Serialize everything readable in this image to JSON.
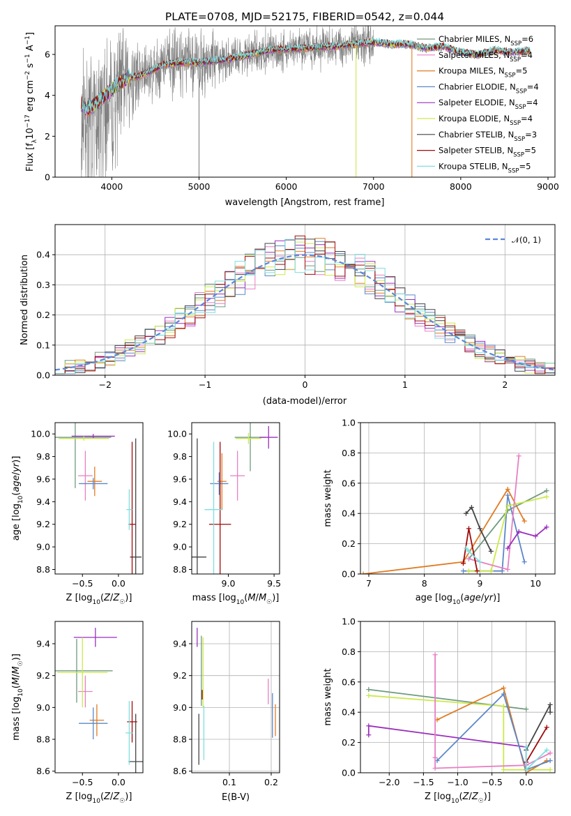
{
  "figure": {
    "title": "PLATE=0708, MJD=52175, FIBERID=0542, z=0.044"
  },
  "colors": {
    "chabrier_miles": "#6f9a7e",
    "salpeter_miles": "#e77fc2",
    "kroupa_miles": "#e07b22",
    "chabrier_elodie": "#5b87c8",
    "salpeter_elodie": "#9a2fbd",
    "kroupa_elodie": "#cbe94a",
    "chabrier_stelib": "#444444",
    "salpeter_stelib": "#a00a0a",
    "kroupa_stelib": "#7fdede",
    "observed": "#808080",
    "normal_curve": "#5b87d8",
    "grid": "#b0b0b0"
  },
  "chart_data": [
    {
      "id": "spectrum",
      "type": "line",
      "title": "PLATE=0708, MJD=52175, FIBERID=0542, z=0.044",
      "xlabel": "wavelength [Angstrom, rest frame]",
      "ylabel": "Flux [f_λ 10^-17 erg cm^-2 s^-1 A^-1]",
      "ylabel_parts": {
        "a": "Flux [f",
        "b": "λ",
        "c": "10",
        "d": "−17",
        "e": " erg cm",
        "f": "−2",
        "g": " s",
        "h": "−1",
        "i": " A",
        "j": "−1",
        "k": "]"
      },
      "xlim": [
        3350,
        9080
      ],
      "ylim": [
        0,
        7.4
      ],
      "xticks": [
        "4000",
        "5000",
        "6000",
        "7000",
        "8000",
        "9000"
      ],
      "xtick_values": [
        4000,
        5000,
        6000,
        7000,
        8000,
        9000
      ],
      "yticks": [
        "0",
        "2",
        "4",
        "6"
      ],
      "ytick_values": [
        0,
        2,
        4,
        6
      ],
      "grid": false,
      "legend_position": "upper right",
      "continuum": {
        "x": [
          3650,
          3700,
          3800,
          3900,
          4000,
          4100,
          4200,
          4300,
          4400,
          4500,
          4600,
          4800,
          5000,
          5200,
          5400,
          5600,
          5800,
          6000,
          6200,
          6400,
          6600,
          6800,
          7000,
          7200,
          7400,
          7600,
          7800,
          8000,
          8200,
          8400,
          8600,
          8800
        ],
        "y": [
          3.6,
          3.3,
          3.5,
          3.9,
          4.3,
          4.6,
          4.9,
          4.9,
          5.1,
          5.3,
          5.5,
          5.6,
          5.6,
          5.7,
          5.8,
          6.0,
          6.2,
          6.25,
          6.3,
          6.35,
          6.4,
          6.5,
          6.6,
          6.5,
          6.5,
          6.3,
          6.4,
          6.1,
          6.0,
          6.2,
          6.1,
          6.2
        ]
      },
      "observed_range": [
        3650,
        7000
      ],
      "sharp_dips": [
        {
          "x": 5000,
          "y": 0,
          "series": "observed"
        },
        {
          "x": 6800,
          "y": 0,
          "series": "kroupa_elodie"
        },
        {
          "x": 7440,
          "y": 0,
          "series": "kroupa_miles"
        }
      ],
      "series": [
        {
          "key": "chabrier_miles",
          "label": "Chabrier MILES, N",
          "sub": "SSP",
          "value": "=6"
        },
        {
          "key": "salpeter_miles",
          "label": "Salpeter MILES, N",
          "sub": "SSP",
          "value": "=4"
        },
        {
          "key": "kroupa_miles",
          "label": "Kroupa MILES, N",
          "sub": "SSP",
          "value": "=5"
        },
        {
          "key": "chabrier_elodie",
          "label": "Chabrier ELODIE, N",
          "sub": "SSP",
          "value": "=4"
        },
        {
          "key": "salpeter_elodie",
          "label": "Salpeter ELODIE, N",
          "sub": "SSP",
          "value": "=4"
        },
        {
          "key": "kroupa_elodie",
          "label": "Kroupa ELODIE, N",
          "sub": "SSP",
          "value": "=4"
        },
        {
          "key": "chabrier_stelib",
          "label": "Chabrier STELIB, N",
          "sub": "SSP",
          "value": "=3"
        },
        {
          "key": "salpeter_stelib",
          "label": "Salpeter STELIB, N",
          "sub": "SSP",
          "value": "=5"
        },
        {
          "key": "kroupa_stelib",
          "label": "Kroupa STELIB, N",
          "sub": "SSP",
          "value": "=5"
        }
      ]
    },
    {
      "id": "residuals",
      "type": "line",
      "xlabel": "(data-model)/error",
      "ylabel": "Normed distribution",
      "xlim": [
        -2.5,
        2.5
      ],
      "ylim": [
        0,
        0.5
      ],
      "xticks": [
        "−2",
        "−1",
        "0",
        "1",
        "2"
      ],
      "xtick_values": [
        -2,
        -1,
        0,
        1,
        2
      ],
      "yticks": [
        "0.0",
        "0.1",
        "0.2",
        "0.3",
        "0.4"
      ],
      "ytick_values": [
        0,
        0.1,
        0.2,
        0.3,
        0.4
      ],
      "grid": true,
      "legend_position": "upper right",
      "legend_label": "𝒩(0, 1)",
      "bin_width": 0.1,
      "bin_start": -2.5,
      "normal": {
        "mean": 0,
        "sd": 1
      }
    },
    {
      "id": "age_vs_z",
      "type": "scatter",
      "xlabel": "Z [log10(Z/Z_sun)]",
      "ylabel": "age [log10(age/yr)]",
      "xlim": [
        -0.88,
        0.34
      ],
      "ylim": [
        8.76,
        10.1
      ],
      "xticks": [
        "−0.5",
        "0.0"
      ],
      "xtick_values": [
        -0.5,
        0.0
      ],
      "yticks": [
        "8.8",
        "9.0",
        "9.2",
        "9.4",
        "9.6",
        "9.8",
        "10.0"
      ],
      "ytick_values": [
        8.8,
        9.0,
        9.2,
        9.4,
        9.6,
        9.8,
        10.0
      ],
      "grid": false,
      "points": [
        {
          "series": "chabrier_miles",
          "x": -0.6,
          "xerr": 0.5,
          "y": 9.97,
          "yerr": 0.45
        },
        {
          "series": "salpeter_miles",
          "x": -0.46,
          "xerr": 0.1,
          "y": 9.63,
          "yerr": 0.22
        },
        {
          "series": "kroupa_miles",
          "x": -0.33,
          "xerr": 0.1,
          "y": 9.58,
          "yerr": 0.13
        },
        {
          "series": "chabrier_elodie",
          "x": -0.35,
          "xerr": 0.2,
          "y": 9.56,
          "yerr": 0.05
        },
        {
          "series": "salpeter_elodie",
          "x": -0.35,
          "xerr": 0.3,
          "y": 9.98,
          "yerr": 0.02
        },
        {
          "series": "kroupa_elodie",
          "x": -0.48,
          "xerr": 0.35,
          "y": 9.96,
          "yerr": 0.02
        },
        {
          "series": "chabrier_stelib",
          "x": 0.24,
          "xerr": 0.08,
          "y": 8.91,
          "yerr": 1.05
        },
        {
          "series": "salpeter_stelib",
          "x": 0.19,
          "xerr": 0.05,
          "y": 9.2,
          "yerr": 0.73
        },
        {
          "series": "kroupa_stelib",
          "x": 0.15,
          "xerr": 0.04,
          "y": 9.33,
          "yerr": 0.18
        }
      ]
    },
    {
      "id": "age_vs_mass",
      "type": "scatter",
      "xlabel": "mass [log10(M/M_sun)]",
      "xlim": [
        8.6,
        9.56
      ],
      "ylim": [
        8.76,
        10.1
      ],
      "xticks": [
        "9.0",
        "9.5"
      ],
      "xtick_values": [
        9.0,
        9.5
      ],
      "yticks": [
        "8.8",
        "9.0",
        "9.2",
        "9.4",
        "9.6",
        "9.8",
        "10.0"
      ],
      "ytick_values": [
        8.8,
        9.0,
        9.2,
        9.4,
        9.6,
        9.8,
        10.0
      ],
      "grid": false,
      "points": [
        {
          "series": "chabrier_miles",
          "x": 9.24,
          "xerr": 0.17,
          "y": 9.97,
          "yerr": 0.3
        },
        {
          "series": "salpeter_miles",
          "x": 9.1,
          "xerr": 0.08,
          "y": 9.63,
          "yerr": 0.22
        },
        {
          "series": "kroupa_miles",
          "x": 8.93,
          "xerr": 0.05,
          "y": 9.58,
          "yerr": 0.25
        },
        {
          "series": "chabrier_elodie",
          "x": 8.9,
          "xerr": 0.1,
          "y": 9.56,
          "yerr": 0.1
        },
        {
          "series": "salpeter_elodie",
          "x": 9.44,
          "xerr": 0.1,
          "y": 9.97,
          "yerr": 0.1
        },
        {
          "series": "kroupa_elodie",
          "x": 9.22,
          "xerr": 0.14,
          "y": 9.96,
          "yerr": 0.05
        },
        {
          "series": "chabrier_stelib",
          "x": 8.66,
          "xerr": 0.1,
          "y": 8.91,
          "yerr": 1.05
        },
        {
          "series": "salpeter_stelib",
          "x": 8.91,
          "xerr": 0.12,
          "y": 9.2,
          "yerr": 0.73
        },
        {
          "series": "kroupa_stelib",
          "x": 8.84,
          "xerr": 0.1,
          "y": 9.33,
          "yerr": 0.6
        }
      ]
    },
    {
      "id": "mass_weight_vs_age",
      "type": "line",
      "xlabel": "age [log10(age/yr)]",
      "ylabel": "mass weight",
      "xlim": [
        6.85,
        10.35
      ],
      "ylim": [
        0,
        1.0
      ],
      "xticks": [
        "7",
        "8",
        "9",
        "10"
      ],
      "xtick_values": [
        7,
        8,
        9,
        10
      ],
      "yticks": [
        "0.0",
        "0.2",
        "0.4",
        "0.6",
        "0.8",
        "1.0"
      ],
      "ytick_values": [
        0,
        0.2,
        0.4,
        0.6,
        0.8,
        1.0
      ],
      "grid": true,
      "series": [
        {
          "key": "kroupa_miles",
          "x": [
            6.9,
            8.7,
            9.5,
            9.8
          ],
          "y": [
            0.0,
            0.08,
            0.56,
            0.35
          ]
        },
        {
          "key": "chabrier_elodie",
          "x": [
            8.7,
            9.4,
            9.5,
            9.8
          ],
          "y": [
            0.02,
            0.02,
            0.52,
            0.08
          ]
        },
        {
          "key": "chabrier_miles",
          "x": [
            8.8,
            9.5,
            10.2
          ],
          "y": [
            0.1,
            0.42,
            0.55
          ]
        },
        {
          "key": "kroupa_elodie",
          "x": [
            8.8,
            9.2,
            9.5,
            10.2
          ],
          "y": [
            0.02,
            0.02,
            0.45,
            0.51
          ]
        },
        {
          "key": "salpeter_miles",
          "x": [
            8.8,
            9.5,
            9.7
          ],
          "y": [
            0.1,
            0.03,
            0.78
          ]
        },
        {
          "key": "salpeter_elodie",
          "x": [
            9.5,
            9.7,
            10.0,
            10.2
          ],
          "y": [
            0.17,
            0.28,
            0.25,
            0.31
          ]
        },
        {
          "key": "chabrier_stelib",
          "x": [
            8.75,
            8.85,
            9.0,
            9.2
          ],
          "y": [
            0.4,
            0.44,
            0.3,
            0.15
          ]
        },
        {
          "key": "salpeter_stelib",
          "x": [
            8.7,
            8.8,
            8.95
          ],
          "y": [
            0.07,
            0.3,
            0.02
          ]
        },
        {
          "key": "kroupa_stelib",
          "x": [
            8.75,
            8.8,
            9.0
          ],
          "y": [
            0.17,
            0.15,
            0.08
          ]
        }
      ]
    },
    {
      "id": "mass_vs_z",
      "type": "scatter",
      "xlabel": "Z [log10(Z/Z_sun)]",
      "ylabel": "mass [log10(M/M_sun)]",
      "xlim": [
        -0.88,
        0.34
      ],
      "ylim": [
        8.59,
        9.54
      ],
      "xticks": [
        "−0.5",
        "0.0"
      ],
      "xtick_values": [
        -0.5,
        0.0
      ],
      "yticks": [
        "8.6",
        "8.8",
        "9.0",
        "9.2",
        "9.4"
      ],
      "ytick_values": [
        8.6,
        8.8,
        9.0,
        9.2,
        9.4
      ],
      "grid": false,
      "points": [
        {
          "series": "chabrier_miles",
          "x": -0.58,
          "xerr": 0.5,
          "y": 9.23,
          "yerr": 0.2
        },
        {
          "series": "salpeter_miles",
          "x": -0.46,
          "xerr": 0.1,
          "y": 9.1,
          "yerr": 0.1
        },
        {
          "series": "kroupa_miles",
          "x": -0.3,
          "xerr": 0.1,
          "y": 8.92,
          "yerr": 0.1
        },
        {
          "series": "chabrier_elodie",
          "x": -0.35,
          "xerr": 0.2,
          "y": 8.9,
          "yerr": 0.1
        },
        {
          "series": "salpeter_elodie",
          "x": -0.32,
          "xerr": 0.3,
          "y": 9.44,
          "yerr": 0.06
        },
        {
          "series": "kroupa_elodie",
          "x": -0.5,
          "xerr": 0.35,
          "y": 9.22,
          "yerr": 0.22
        },
        {
          "series": "chabrier_stelib",
          "x": 0.24,
          "xerr": 0.1,
          "y": 8.66,
          "yerr": 0.3
        },
        {
          "series": "salpeter_stelib",
          "x": 0.19,
          "xerr": 0.07,
          "y": 8.91,
          "yerr": 0.13
        },
        {
          "series": "kroupa_stelib",
          "x": 0.15,
          "xerr": 0.05,
          "y": 8.84,
          "yerr": 0.2
        }
      ]
    },
    {
      "id": "mass_vs_ebv",
      "type": "scatter",
      "xlabel": "E(B-V)",
      "xlim": [
        0.01,
        0.22
      ],
      "ylim": [
        8.59,
        9.54
      ],
      "xticks": [
        "0.1",
        "0.2"
      ],
      "xtick_values": [
        0.1,
        0.2
      ],
      "yticks": [
        "8.6",
        "8.8",
        "9.0",
        "9.2",
        "9.4"
      ],
      "ytick_values": [
        8.6,
        8.8,
        9.0,
        9.2,
        9.4
      ],
      "grid": true,
      "points": [
        {
          "series": "chabrier_miles",
          "x": 0.033,
          "xerr": 0,
          "y": 9.23,
          "yerr": 0.22
        },
        {
          "series": "salpeter_miles",
          "x": 0.193,
          "xerr": 0,
          "y": 9.1,
          "yerr": 0.08
        },
        {
          "series": "kroupa_miles",
          "x": 0.21,
          "xerr": 0,
          "y": 8.92,
          "yerr": 0.1
        },
        {
          "series": "chabrier_elodie",
          "x": 0.203,
          "xerr": 0,
          "y": 8.95,
          "yerr": 0.14
        },
        {
          "series": "salpeter_elodie",
          "x": 0.023,
          "xerr": 0,
          "y": 9.44,
          "yerr": 0.06
        },
        {
          "series": "kroupa_elodie",
          "x": 0.037,
          "xerr": 0,
          "y": 9.22,
          "yerr": 0.22
        },
        {
          "series": "chabrier_stelib",
          "x": 0.027,
          "xerr": 0,
          "y": 8.8,
          "yerr": 0.16
        },
        {
          "series": "salpeter_stelib",
          "x": 0.035,
          "xerr": 0,
          "y": 9.08,
          "yerr": 0.03
        },
        {
          "series": "kroupa_stelib",
          "x": 0.039,
          "xerr": 0,
          "y": 8.84,
          "yerr": 0.17
        }
      ]
    },
    {
      "id": "mass_weight_vs_z",
      "type": "line",
      "xlabel": "Z [log10(Z/Z_sun)]",
      "ylabel": "mass weight",
      "xlim": [
        -2.42,
        0.42
      ],
      "ylim": [
        0,
        1.0
      ],
      "xticks": [
        "−2.0",
        "−1.5",
        "−1.0",
        "−0.5",
        "0.0"
      ],
      "xtick_values": [
        -2.0,
        -1.5,
        -1.0,
        -0.5,
        0.0
      ],
      "yticks": [
        "0.0",
        "0.2",
        "0.4",
        "0.6",
        "0.8",
        "1.0"
      ],
      "ytick_values": [
        0,
        0.2,
        0.4,
        0.6,
        0.8,
        1.0
      ],
      "grid": true,
      "series": [
        {
          "key": "chabrier_miles",
          "x": [
            -2.3,
            0.0
          ],
          "y": [
            0.55,
            0.42
          ]
        },
        {
          "key": "kroupa_elodie",
          "x": [
            -2.3,
            -0.33,
            -0.33,
            0.0,
            0.35
          ],
          "y": [
            0.51,
            0.44,
            0.02,
            0.02,
            0.02
          ]
        },
        {
          "key": "salpeter_elodie",
          "x": [
            -2.3,
            -2.3,
            0.0,
            0.0
          ],
          "y": [
            0.25,
            0.31,
            0.17,
            0.02
          ]
        },
        {
          "key": "kroupa_miles",
          "x": [
            -1.3,
            -0.33,
            0.0,
            0.3
          ],
          "y": [
            0.35,
            0.56,
            0.0,
            0.08
          ]
        },
        {
          "key": "chabrier_elodie",
          "x": [
            -1.3,
            -0.33,
            0.0,
            0.35
          ],
          "y": [
            0.08,
            0.52,
            0.02,
            0.08
          ]
        },
        {
          "key": "salpeter_miles",
          "x": [
            -1.33,
            -1.33,
            -1.33,
            0.0,
            0.35
          ],
          "y": [
            0.78,
            0.1,
            0.03,
            0.05,
            0.13
          ]
        },
        {
          "key": "chabrier_stelib",
          "x": [
            0.0,
            0.35,
            0.35
          ],
          "y": [
            0.15,
            0.45,
            0.4
          ]
        },
        {
          "key": "salpeter_stelib",
          "x": [
            0.0,
            0.3
          ],
          "y": [
            0.07,
            0.3
          ]
        },
        {
          "key": "kroupa_stelib",
          "x": [
            0.0,
            0.0,
            0.3
          ],
          "y": [
            0.17,
            0.02,
            0.15
          ]
        }
      ]
    }
  ]
}
